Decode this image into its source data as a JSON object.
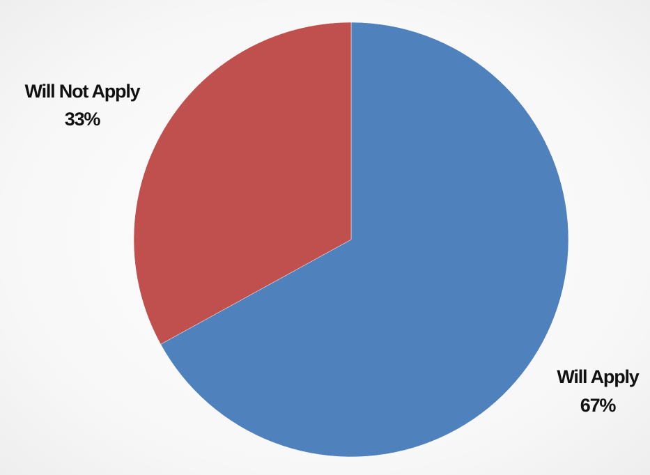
{
  "chart_data": {
    "type": "pie",
    "slices": [
      {
        "label": "Will Apply",
        "value": 67,
        "value_label": "67%",
        "color": "#4F81BD"
      },
      {
        "label": "Will Not Apply",
        "value": 33,
        "value_label": "33%",
        "color": "#C0504D"
      }
    ],
    "start_angle": "12 o'clock",
    "direction": "clockwise",
    "legend": "none",
    "data_labels": "outside, category name and percentage"
  }
}
